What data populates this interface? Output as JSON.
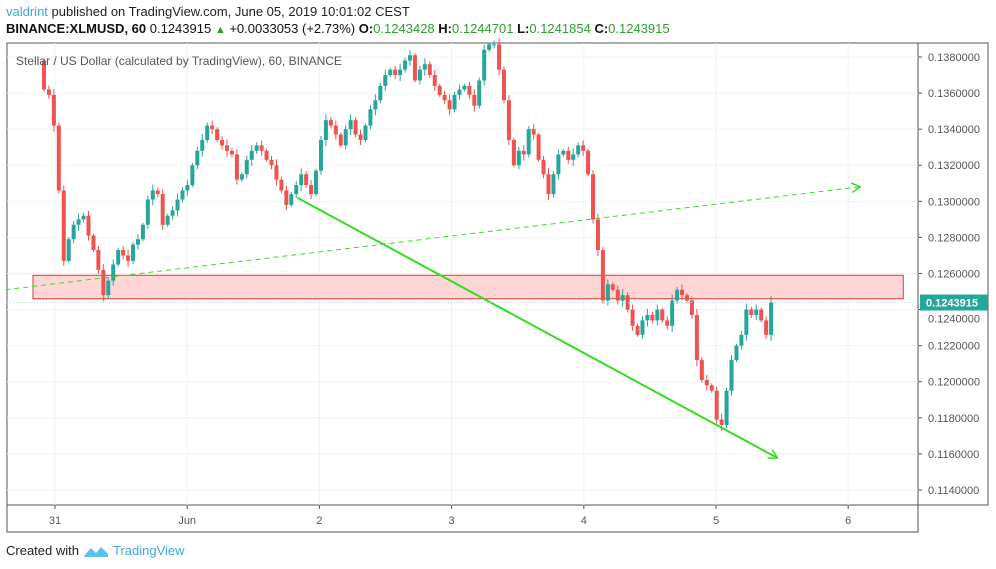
{
  "header": {
    "user": "valdrint",
    "published": "published on TradingView.com, June 05, 2019 10:01:02 CEST",
    "symbol": "BINANCE:XLMUSD, 60",
    "last": "0.1243915",
    "change": "+0.0033053 (+2.73%)",
    "o_label": "O:",
    "o": "0.1243428",
    "h_label": "H:",
    "h": "0.1244701",
    "l_label": "L:",
    "l": "0.1241854",
    "c_label": "C:",
    "c": "0.1243915"
  },
  "footer": {
    "created": "Created with",
    "brand": "TradingView"
  },
  "chart_data": {
    "type": "candlestick",
    "title": "Stellar / US Dollar (calculated by TradingView), 60, BINANCE",
    "x_ticks": [
      {
        "label": "31",
        "date": "2019-05-31"
      },
      {
        "label": "Jun",
        "date": "2019-06-01"
      },
      {
        "label": "2",
        "date": "2019-06-02"
      },
      {
        "label": "3",
        "date": "2019-06-03"
      },
      {
        "label": "4",
        "date": "2019-06-04"
      },
      {
        "label": "5",
        "date": "2019-06-05"
      },
      {
        "label": "6",
        "date": "2019-06-06"
      }
    ],
    "y_ticks": [
      "0.1380000",
      "0.1360000",
      "0.1340000",
      "0.1320000",
      "0.1300000",
      "0.1280000",
      "0.1260000",
      "0.1240000",
      "0.1220000",
      "0.1200000",
      "0.1180000",
      "0.1160000",
      "0.1140000"
    ],
    "ylim": [
      0.1132,
      0.1388
    ],
    "xlim": [
      "2019-05-30 14:10",
      "2019-06-06 19:00"
    ],
    "grid": true,
    "first_open": 0.1378,
    "candles_start": "2019-05-30 22:00",
    "candles_end": "2019-06-05 10:00",
    "closes": [
      0.1362,
      0.1359,
      0.1342,
      0.1306,
      0.1267,
      0.1279,
      0.1287,
      0.129,
      0.1292,
      0.1281,
      0.1273,
      0.1262,
      0.1248,
      0.1256,
      0.1265,
      0.1273,
      0.127,
      0.1267,
      0.1276,
      0.1279,
      0.1287,
      0.1301,
      0.1306,
      0.1304,
      0.1287,
      0.1292,
      0.1295,
      0.1301,
      0.1306,
      0.1309,
      0.132,
      0.1328,
      0.1334,
      0.1342,
      0.134,
      0.1334,
      0.1331,
      0.1328,
      0.1326,
      0.1312,
      0.1315,
      0.1323,
      0.1328,
      0.1331,
      0.1328,
      0.1323,
      0.132,
      0.1312,
      0.1306,
      0.1298,
      0.1304,
      0.1309,
      0.1315,
      0.1309,
      0.1304,
      0.1317,
      0.1334,
      0.1345,
      0.1342,
      0.1337,
      0.1331,
      0.134,
      0.1345,
      0.1337,
      0.1334,
      0.1342,
      0.1351,
      0.1356,
      0.1364,
      0.137,
      0.1373,
      0.137,
      0.1373,
      0.1378,
      0.1381,
      0.1367,
      0.1373,
      0.1376,
      0.137,
      0.1364,
      0.1359,
      0.1356,
      0.1351,
      0.1359,
      0.1362,
      0.1364,
      0.1359,
      0.1353,
      0.1367,
      0.1384,
      0.1387,
      0.1387,
      0.1373,
      0.1356,
      0.1334,
      0.132,
      0.1328,
      0.1326,
      0.134,
      0.1337,
      0.1323,
      0.1315,
      0.1304,
      0.1315,
      0.1326,
      0.1328,
      0.1323,
      0.1326,
      0.1331,
      0.1328,
      0.1315,
      0.129,
      0.1273,
      0.1245,
      0.1254,
      0.1251,
      0.1245,
      0.1248,
      0.124,
      0.1231,
      0.1226,
      0.1234,
      0.1237,
      0.1234,
      0.124,
      0.1234,
      0.1231,
      0.1245,
      0.1251,
      0.1248,
      0.1245,
      0.1237,
      0.1212,
      0.1201,
      0.1198,
      0.1195,
      0.1179,
      0.1176,
      0.1195,
      0.1212,
      0.122,
      0.1226,
      0.124,
      0.1237,
      0.124,
      0.1234,
      0.1226,
      0.1244
    ],
    "current_price_label": "0.1243915",
    "colors": {
      "up": "#26a69a",
      "down": "#ef5350",
      "trendline": "#33dd22",
      "zone_fill": "#ffd6d6",
      "zone_border": "#e53935",
      "price_tag": "#26a69a"
    },
    "annotations": [
      {
        "type": "arrow-line",
        "from": {
          "date": "2019-06-01 20:00",
          "price": 0.1302
        },
        "to": {
          "date": "2019-06-05 11:00",
          "price": 0.1158
        }
      },
      {
        "type": "dashed-arrow-line",
        "from": {
          "date": "2019-05-30 15:00",
          "price": 0.1251
        },
        "to": {
          "date": "2019-06-06 02:00",
          "price": 0.1308
        }
      },
      {
        "type": "rectangle",
        "from": {
          "date": "2019-05-30 20:00",
          "price": 0.1259
        },
        "to": {
          "date": "2019-06-06 10:00",
          "price": 0.1246
        }
      }
    ]
  }
}
